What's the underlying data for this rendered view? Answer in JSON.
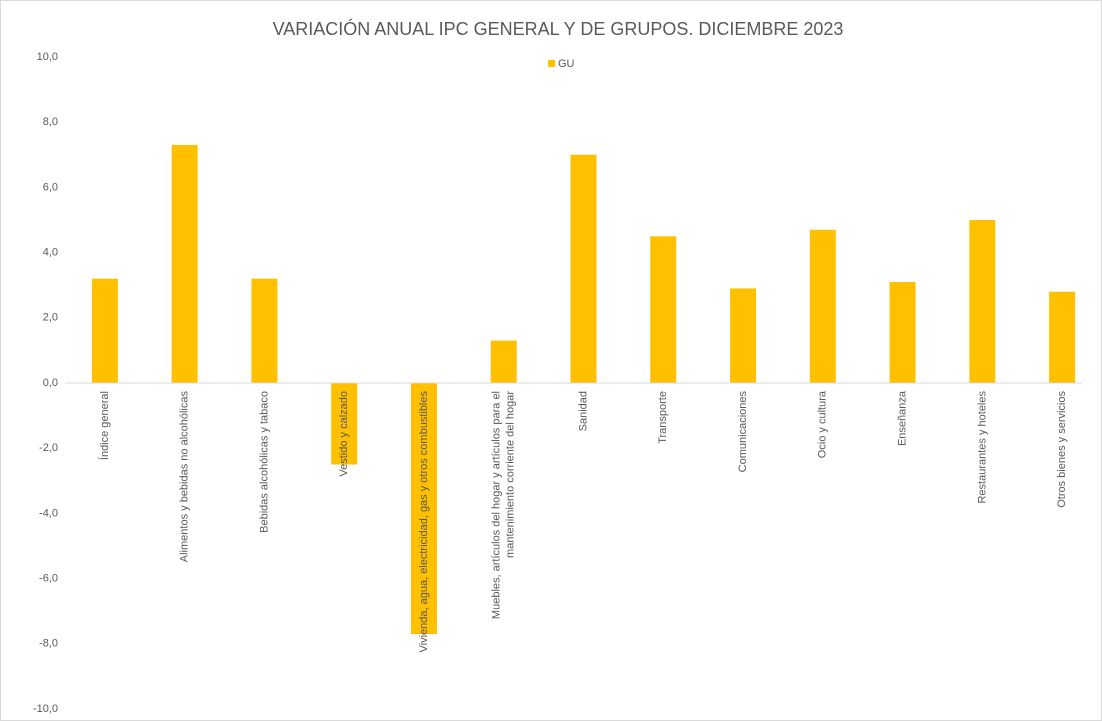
{
  "chart_data": {
    "type": "bar",
    "title": "VARIACIÓN ANUAL IPC GENERAL Y DE GRUPOS. DICIEMBRE 2023",
    "categories": [
      "Índice general",
      "Alimentos y bebidas no alcohólicas",
      "Bebidas alcohólicas y tabaco",
      "Vestido y calzado",
      "Vivienda, agua, electricidad, gas y otros combustibles",
      "Muebles, artículos del hogar y artículos para el\nmantenimiento corriente del hogar",
      "Sanidad",
      "Transporte",
      "Comunicaciones",
      "Ocio y cultura",
      "Enseñanza",
      "Restaurantes y hoteles",
      "Otros bienes y servicios"
    ],
    "series": [
      {
        "name": "GU",
        "color": "#FFC000",
        "values": [
          3.2,
          7.3,
          3.2,
          -2.5,
          -7.7,
          1.3,
          7.0,
          4.5,
          2.9,
          4.7,
          3.1,
          5.0,
          2.8
        ]
      }
    ],
    "ylim": [
      -10,
      10
    ],
    "yticks": [
      {
        "value": -10,
        "label": "-10,0"
      },
      {
        "value": -8,
        "label": "-8,0"
      },
      {
        "value": -6,
        "label": "-6,0"
      },
      {
        "value": -4,
        "label": "-4,0"
      },
      {
        "value": -2,
        "label": "-2,0"
      },
      {
        "value": 0,
        "label": "0,0"
      },
      {
        "value": 2,
        "label": "2,0"
      },
      {
        "value": 4,
        "label": "4,0"
      },
      {
        "value": 6,
        "label": "6,0"
      },
      {
        "value": 8,
        "label": "8,0"
      },
      {
        "value": 10,
        "label": "10,0"
      }
    ],
    "grid": false,
    "legend": "top"
  }
}
